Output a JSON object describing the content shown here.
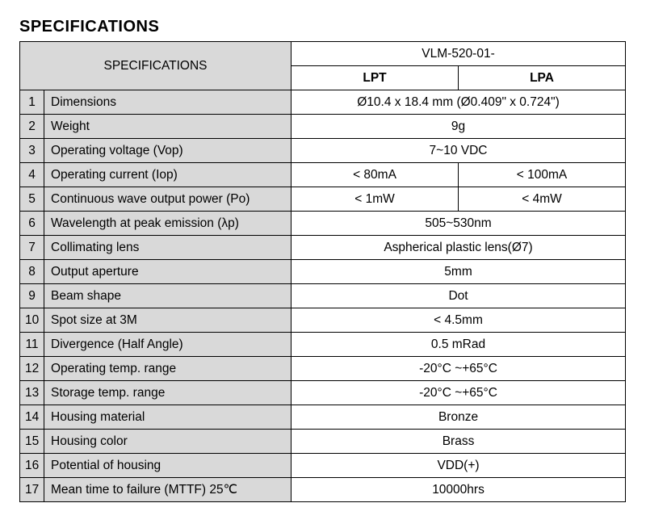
{
  "title": "SPECIFICATIONS",
  "header": {
    "spec_label": "SPECIFICATIONS",
    "model_prefix": "VLM-520-01-",
    "variant1": "LPT",
    "variant2": "LPA"
  },
  "rows": [
    {
      "n": "1",
      "label": "Dimensions",
      "merged": true,
      "value": "Ø10.4 x 18.4 mm (Ø0.409\" x 0.724\")"
    },
    {
      "n": "2",
      "label": "Weight",
      "merged": true,
      "value": "9g"
    },
    {
      "n": "3",
      "label": "Operating voltage (Vop)",
      "merged": true,
      "value": "7~10 VDC"
    },
    {
      "n": "4",
      "label": "Operating current (Iop)",
      "merged": false,
      "v1": "< 80mA",
      "v2": "< 100mA"
    },
    {
      "n": "5",
      "label": "Continuous wave output power (Po)",
      "merged": false,
      "v1": "< 1mW",
      "v2": "< 4mW"
    },
    {
      "n": "6",
      "label": "Wavelength at peak emission (λp)",
      "merged": true,
      "value": "505~530nm"
    },
    {
      "n": "7",
      "label": "Collimating lens",
      "merged": true,
      "value": "Aspherical plastic lens(Ø7)"
    },
    {
      "n": "8",
      "label": "Output aperture",
      "merged": true,
      "value": "5mm"
    },
    {
      "n": "9",
      "label": "Beam shape",
      "merged": true,
      "value": "Dot"
    },
    {
      "n": "10",
      "label": "Spot size at 3M",
      "merged": true,
      "value": "< 4.5mm"
    },
    {
      "n": "11",
      "label": "Divergence (Half Angle)",
      "merged": true,
      "value": "0.5 mRad"
    },
    {
      "n": "12",
      "label": "Operating temp. range",
      "merged": true,
      "value": "-20°C ~+65°C"
    },
    {
      "n": "13",
      "label": "Storage temp. range",
      "merged": true,
      "value": "-20°C ~+65°C"
    },
    {
      "n": "14",
      "label": "Housing material",
      "merged": true,
      "value": "Bronze"
    },
    {
      "n": "15",
      "label": "Housing color",
      "merged": true,
      "value": "Brass"
    },
    {
      "n": "16",
      "label": "Potential of housing",
      "merged": true,
      "value": "VDD(+)"
    },
    {
      "n": "17",
      "label": "Mean time to failure (MTTF) 25℃",
      "merged": true,
      "value": "10000hrs"
    }
  ]
}
